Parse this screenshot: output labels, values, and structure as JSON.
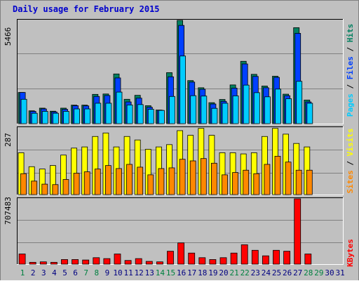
{
  "title": "Daily usage for February 2015",
  "colors": {
    "background": "#c0c0c0",
    "panel": "#c0c0c0",
    "grid": "#808080",
    "title": "#0000cc",
    "pages": "#00ccff",
    "files": "#0040ff",
    "hits": "#008060",
    "visits": "#ffff00",
    "sites": "#ff8800",
    "kbytes": "#ff0000",
    "weekend": "#008040",
    "weekday": "#000080"
  },
  "chart_data": [
    {
      "type": "bar",
      "name": "hits-files-pages",
      "categories": [
        "1",
        "2",
        "3",
        "4",
        "5",
        "6",
        "7",
        "8",
        "9",
        "10",
        "11",
        "12",
        "13",
        "14",
        "15",
        "16",
        "17",
        "18",
        "19",
        "20",
        "21",
        "22",
        "23",
        "24",
        "25",
        "26",
        "27",
        "28"
      ],
      "ymax_label": "5466",
      "ylim": [
        0,
        5466
      ],
      "legend": [
        {
          "label": "Pages",
          "color": "#00ccff"
        },
        {
          "label": "Files",
          "color": "#0040ff"
        },
        {
          "label": "Hits",
          "color": "#008060"
        }
      ],
      "series": [
        {
          "name": "Hits",
          "values": [
            1650,
            680,
            820,
            660,
            820,
            980,
            980,
            1550,
            1570,
            2630,
            1290,
            1500,
            950,
            720,
            2700,
            5466,
            2280,
            1900,
            1110,
            1280,
            2050,
            3300,
            2610,
            1990,
            2510,
            1560,
            5080,
            1250
          ]
        },
        {
          "name": "Files",
          "values": [
            1650,
            650,
            780,
            620,
            760,
            950,
            940,
            1440,
            1490,
            2420,
            1150,
            1350,
            870,
            710,
            2480,
            5200,
            2200,
            1820,
            1040,
            1180,
            1880,
            3160,
            2500,
            1900,
            2450,
            1480,
            4780,
            1150
          ]
        },
        {
          "name": "Pages",
          "values": [
            1290,
            550,
            650,
            550,
            650,
            780,
            780,
            1080,
            1080,
            1670,
            990,
            1010,
            760,
            700,
            1440,
            3580,
            1480,
            1460,
            810,
            1080,
            1470,
            2040,
            1640,
            1420,
            1830,
            1320,
            2240,
            1080
          ]
        }
      ]
    },
    {
      "type": "bar",
      "name": "visits-sites",
      "categories": [
        "1",
        "2",
        "3",
        "4",
        "5",
        "6",
        "7",
        "8",
        "9",
        "10",
        "11",
        "12",
        "13",
        "14",
        "15",
        "16",
        "17",
        "18",
        "19",
        "20",
        "21",
        "22",
        "23",
        "24",
        "25",
        "26",
        "27",
        "28"
      ],
      "ymax_label": "287",
      "ylim": [
        0,
        287
      ],
      "legend": [
        {
          "label": "Sites",
          "color": "#ff8800"
        },
        {
          "label": "Visits",
          "color": "#ffff00"
        }
      ],
      "series": [
        {
          "name": "Visits",
          "values": [
            180,
            120,
            110,
            125,
            170,
            200,
            205,
            250,
            265,
            205,
            250,
            235,
            195,
            205,
            215,
            275,
            255,
            285,
            255,
            180,
            180,
            175,
            180,
            250,
            285,
            260,
            220,
            205
          ]
        },
        {
          "name": "Sites",
          "values": [
            90,
            58,
            45,
            43,
            65,
            92,
            98,
            110,
            125,
            112,
            130,
            118,
            85,
            112,
            115,
            152,
            145,
            155,
            135,
            85,
            95,
            105,
            90,
            130,
            165,
            140,
            105,
            105
          ]
        }
      ]
    },
    {
      "type": "bar",
      "name": "kbytes",
      "categories": [
        "1",
        "2",
        "3",
        "4",
        "5",
        "6",
        "7",
        "8",
        "9",
        "10",
        "11",
        "12",
        "13",
        "14",
        "15",
        "16",
        "17",
        "18",
        "19",
        "20",
        "21",
        "22",
        "23",
        "24",
        "25",
        "26",
        "27",
        "28"
      ],
      "ymax_label": "707483",
      "ylim": [
        0,
        707483
      ],
      "legend": [
        {
          "label": "KBytes",
          "color": "#ff0000"
        }
      ],
      "series": [
        {
          "name": "KBytes",
          "values": [
            110000,
            20000,
            25000,
            20000,
            50000,
            50000,
            45000,
            70000,
            60000,
            110000,
            40000,
            60000,
            30000,
            25000,
            140000,
            230000,
            120000,
            70000,
            50000,
            70000,
            120000,
            210000,
            150000,
            90000,
            150000,
            140000,
            707483,
            110000
          ]
        }
      ]
    }
  ],
  "x_labels": [
    "1",
    "2",
    "3",
    "4",
    "5",
    "6",
    "7",
    "8",
    "9",
    "10",
    "11",
    "12",
    "13",
    "14",
    "15",
    "16",
    "17",
    "18",
    "19",
    "20",
    "21",
    "22",
    "23",
    "24",
    "25",
    "26",
    "27",
    "28",
    "29",
    "30",
    "31"
  ],
  "weekend_days": [
    1,
    7,
    8,
    14,
    15,
    21,
    22,
    28,
    29
  ]
}
